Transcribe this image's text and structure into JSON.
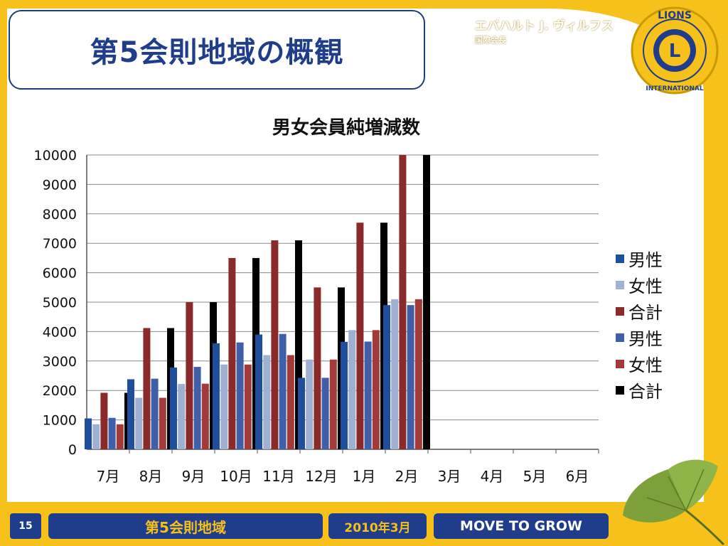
{
  "slide": {
    "title": "第5会則地域の概観",
    "president_name": "エバハルト J. ヴィルフス",
    "president_title": "国際会長",
    "logo_text_top": "LIONS",
    "logo_text_bottom": "INTERNATIONAL",
    "logo_letter": "L"
  },
  "footer": {
    "page_number": "15",
    "district": "第5会則地域",
    "date": "2010年3月",
    "slogan": "MOVE TO GROW"
  },
  "colors": {
    "frame": "#f5c11a",
    "navy": "#1f3d8a"
  },
  "chart_data": {
    "type": "bar",
    "title": "男女会員純増減数",
    "categories": [
      "7月",
      "8月",
      "9月",
      "10月",
      "11月",
      "12月",
      "1月",
      "2月",
      "3月",
      "4月",
      "5月",
      "6月"
    ],
    "ylim": [
      0,
      10000
    ],
    "yticks": [
      0,
      1000,
      2000,
      3000,
      4000,
      5000,
      6000,
      7000,
      8000,
      9000,
      10000
    ],
    "grid": true,
    "legend_position": "right",
    "series": [
      {
        "name": "男性",
        "color": "#1f4e9c",
        "values": [
          1050,
          2380,
          2780,
          3600,
          3900,
          2430,
          3650,
          4900,
          null,
          null,
          null,
          null
        ]
      },
      {
        "name": "女性",
        "color": "#9fb1d3",
        "values": [
          850,
          1750,
          2220,
          2880,
          3200,
          3050,
          4050,
          5100,
          null,
          null,
          null,
          null
        ]
      },
      {
        "name": "合計",
        "color": "#8b2a2a",
        "values": [
          1920,
          4120,
          5000,
          6500,
          7100,
          5500,
          7700,
          10000,
          null,
          null,
          null,
          null
        ]
      },
      {
        "name": "男性",
        "color": "#3f5fa8",
        "values": [
          1070,
          2400,
          2800,
          3630,
          3920,
          2430,
          3660,
          4900,
          null,
          null,
          null,
          null
        ]
      },
      {
        "name": "女性",
        "color": "#a23a3a",
        "values": [
          850,
          1750,
          2230,
          2880,
          3200,
          3050,
          4050,
          5100,
          null,
          null,
          null,
          null
        ]
      },
      {
        "name": "合計",
        "color": "#000000",
        "values": [
          1920,
          4120,
          5000,
          6500,
          7100,
          5500,
          7700,
          10000,
          null,
          null,
          null,
          null
        ]
      }
    ]
  }
}
